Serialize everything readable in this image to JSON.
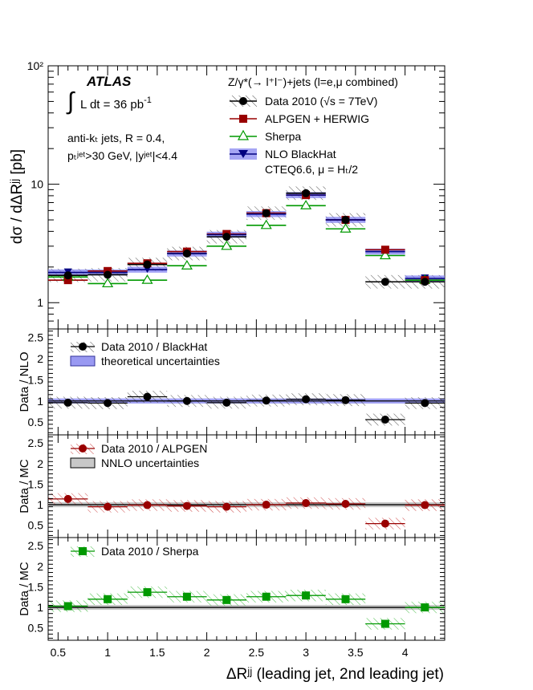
{
  "chart_data": {
    "type": "line",
    "x": [
      0.6,
      1.0,
      1.4,
      1.8,
      2.2,
      2.6,
      3.0,
      3.4,
      3.8,
      4.2
    ],
    "x_edges": [
      0.4,
      0.8,
      1.2,
      1.6,
      2.0,
      2.4,
      2.8,
      3.2,
      3.6,
      4.0,
      4.4
    ],
    "xlim": [
      0.4,
      4.4
    ],
    "xticks": [
      "0.5",
      "1",
      "1.5",
      "2",
      "2.5",
      "3",
      "3.5",
      "4"
    ],
    "xtick_values": [
      0.5,
      1.0,
      1.5,
      2.0,
      2.5,
      3.0,
      3.5,
      4.0
    ],
    "xlabel": "ΔRʲʲ (leading jet, 2nd leading jet)",
    "panels": {
      "main": {
        "ylabel": "dσ / dΔRʲʲ [pb]",
        "log_scale": true,
        "ylim": [
          0.6,
          100
        ],
        "ytick_labels": [
          "1",
          "10",
          "10²"
        ],
        "series": [
          {
            "name": "Data 2010 (√s = 7TeV)",
            "values": [
              1.7,
              1.72,
              2.1,
              2.6,
              3.6,
              5.7,
              8.4,
              5.0,
              1.5,
              1.5
            ],
            "color": "#000000",
            "marker": "circle"
          },
          {
            "name": "ALPGEN + HERWIG",
            "values": [
              1.55,
              1.85,
              2.15,
              2.7,
              3.8,
              5.7,
              8.1,
              5.0,
              2.8,
              1.55
            ],
            "color": "#990000",
            "marker": "square"
          },
          {
            "name": "Sherpa",
            "values": [
              1.65,
              1.45,
              1.55,
              2.05,
              3.0,
              4.5,
              6.6,
              4.2,
              2.5,
              1.55
            ],
            "color": "#009900",
            "marker": "triangle-open"
          },
          {
            "name": "NLO BlackHat",
            "values": [
              1.8,
              1.8,
              1.9,
              2.6,
              3.75,
              5.6,
              8.1,
              5.0,
              2.7,
              1.6
            ],
            "color": "#000080",
            "marker": "triangle-down",
            "band_color": "#8080f0"
          }
        ]
      },
      "ratio_nlo": {
        "ylabel": "Data / NLO",
        "ylim": [
          0.2,
          2.7
        ],
        "yticks": [
          "0.5",
          "1",
          "1.5",
          "2",
          "2.5"
        ],
        "legend": [
          "Data 2010 / BlackHat",
          "theoretical uncertainties"
        ],
        "values": [
          0.96,
          0.95,
          1.1,
          1.0,
          0.96,
          1.01,
          1.04,
          1.02,
          0.56,
          0.95
        ],
        "color": "#000000"
      },
      "ratio_alpgen": {
        "ylabel": "Data / MC",
        "ylim": [
          0.2,
          2.7
        ],
        "yticks": [
          "0.5",
          "1",
          "1.5",
          "2",
          "2.5"
        ],
        "legend": [
          "Data 2010 / ALPGEN",
          "NNLO uncertainties"
        ],
        "values": [
          1.14,
          0.95,
          0.99,
          0.97,
          0.95,
          1.0,
          1.04,
          1.02,
          0.54,
          0.99
        ],
        "color": "#990000"
      },
      "ratio_sherpa": {
        "ylabel": "Data / MC",
        "ylim": [
          0.2,
          2.7
        ],
        "yticks": [
          "0.5",
          "1",
          "1.5",
          "2",
          "2.5"
        ],
        "legend": [
          "Data 2010 / Sherpa"
        ],
        "values": [
          1.03,
          1.2,
          1.37,
          1.26,
          1.18,
          1.26,
          1.29,
          1.2,
          0.6,
          1.0
        ],
        "color": "#009900"
      }
    },
    "annotations": {
      "experiment": "ATLAS",
      "lumi_prefix": "L dt = 36 pb",
      "lumi_exp": "-1",
      "process": "Z/γ*(→ l⁺l⁻)+jets (l=e,μ combined)",
      "algo_line1": "anti-kₜ jets,  R = 0.4,",
      "algo_line2": "pₜʲᵉᵗ>30 GeV, |yʲᵉᵗ|<4.4",
      "pdf_line": "CTEQ6.6, μ = Hₜ/2"
    }
  }
}
